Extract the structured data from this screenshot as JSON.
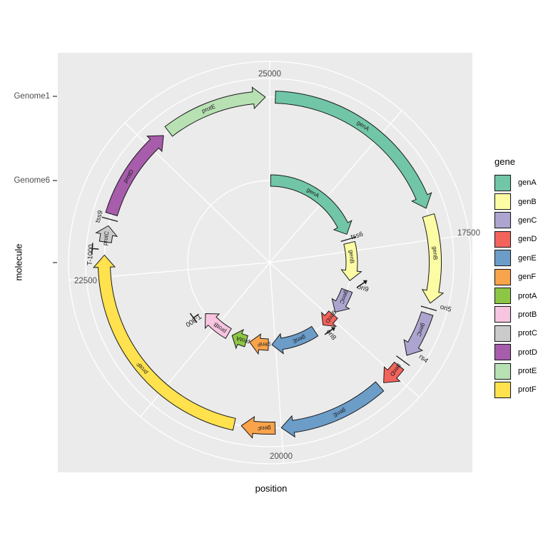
{
  "axes": {
    "x": {
      "title": "position",
      "range": [
        15000,
        25000
      ],
      "ticks": [
        {
          "label": "25000",
          "pos": 25000
        },
        {
          "label": "17500",
          "pos": 17500
        },
        {
          "label": "20000",
          "pos": 20000
        },
        {
          "label": "22500",
          "pos": 22500
        }
      ]
    },
    "y": {
      "title": "molecule",
      "ticks": [
        {
          "label": "Genome1"
        },
        {
          "label": "Genome6"
        },
        {
          "label": ""
        }
      ]
    }
  },
  "legend": {
    "title": "gene",
    "items": [
      {
        "label": "genA",
        "color": "#70C6A6"
      },
      {
        "label": "genB",
        "color": "#FBFCA3"
      },
      {
        "label": "genC",
        "color": "#ADA5CF"
      },
      {
        "label": "genD",
        "color": "#F2635C"
      },
      {
        "label": "genE",
        "color": "#6C9DC9"
      },
      {
        "label": "genF",
        "color": "#F9A34A"
      },
      {
        "label": "protA",
        "color": "#8DC644"
      },
      {
        "label": "protB",
        "color": "#F7C5E0"
      },
      {
        "label": "protC",
        "color": "#CBCBCB"
      },
      {
        "label": "protD",
        "color": "#A75CAC"
      },
      {
        "label": "protE",
        "color": "#B7E1B3"
      },
      {
        "label": "protF",
        "color": "#FFE24E"
      }
    ]
  },
  "chart_data": {
    "type": "circular_gene_map",
    "title": "",
    "xlabel": "position",
    "ylabel": "molecule",
    "theta_range": [
      15000,
      25000
    ],
    "molecules": [
      {
        "name": "Genome1",
        "genes": [
          {
            "gene": "genA",
            "start": 15060,
            "end": 17160
          },
          {
            "gene": "genB",
            "start": 17240,
            "end": 18090
          },
          {
            "gene": "genC",
            "start": 18190,
            "end": 18620
          },
          {
            "gene": "genD",
            "start": 18740,
            "end": 18950
          },
          {
            "gene": "genE",
            "start": 19000,
            "end": 20000
          },
          {
            "gene": "genF",
            "start": 20060,
            "end": 20390
          },
          {
            "gene": "protF",
            "start": 20460,
            "end": 22700
          },
          {
            "gene": "protC",
            "start": 22820,
            "end": 22970
          },
          {
            "gene": "protD",
            "start": 23080,
            "end": 23950
          },
          {
            "gene": "protE",
            "start": 24010,
            "end": 24960
          }
        ],
        "features": [
          {
            "label": "ori5",
            "pos": 18140,
            "kind": "tick"
          },
          {
            "label": "rs4",
            "pos": 18680,
            "kind": "tick"
          },
          {
            "label": "T-1000",
            "pos": 22750,
            "kind": "terminator"
          },
          {
            "label": "tss9",
            "pos": 23030,
            "kind": "tick"
          }
        ]
      },
      {
        "name": "Genome6",
        "genes": [
          {
            "gene": "genA",
            "start": 15020,
            "end": 17130
          },
          {
            "gene": "genB",
            "start": 17320,
            "end": 18050
          },
          {
            "gene": "genC",
            "start": 18240,
            "end": 18700
          },
          {
            "gene": "genD",
            "start": 18760,
            "end": 19030
          },
          {
            "gene": "genE",
            "start": 19220,
            "end": 20070
          },
          {
            "gene": "genF",
            "start": 20140,
            "end": 20510
          },
          {
            "gene": "protA",
            "start": 20580,
            "end": 20880
          },
          {
            "gene": "protB",
            "start": 20960,
            "end": 21560
          }
        ],
        "features": [
          {
            "label": "tss6",
            "pos": 17240,
            "kind": "tick"
          },
          {
            "label": "ori9",
            "pos": 18140,
            "kind": "arrow"
          },
          {
            "label": "ori8",
            "pos": 19110,
            "kind": "arrow"
          },
          {
            "label": "T-800",
            "pos": 21630,
            "kind": "terminator"
          }
        ]
      }
    ]
  }
}
